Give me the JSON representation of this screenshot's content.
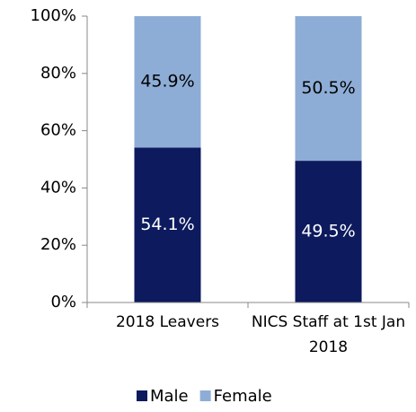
{
  "chart_data": {
    "type": "stacked_bar",
    "categories": [
      "2018 Leavers",
      "NICS Staff at 1st Jan 2018"
    ],
    "series": [
      {
        "name": "Male",
        "color": "#0d1a5e",
        "values": [
          54.1,
          49.5
        ],
        "value_labels": [
          "54.1%",
          "49.5%"
        ]
      },
      {
        "name": "Female",
        "color": "#8eadd6",
        "values": [
          45.9,
          50.5
        ],
        "value_labels": [
          "45.9%",
          "50.5%"
        ]
      }
    ],
    "ylim": [
      0,
      100
    ],
    "yticks": [
      {
        "value": 0,
        "label": "0%"
      },
      {
        "value": 20,
        "label": "20%"
      },
      {
        "value": 40,
        "label": "40%"
      },
      {
        "value": 60,
        "label": "60%"
      },
      {
        "value": 80,
        "label": "80%"
      },
      {
        "value": 100,
        "label": "100%"
      }
    ],
    "legend": "bottom"
  }
}
